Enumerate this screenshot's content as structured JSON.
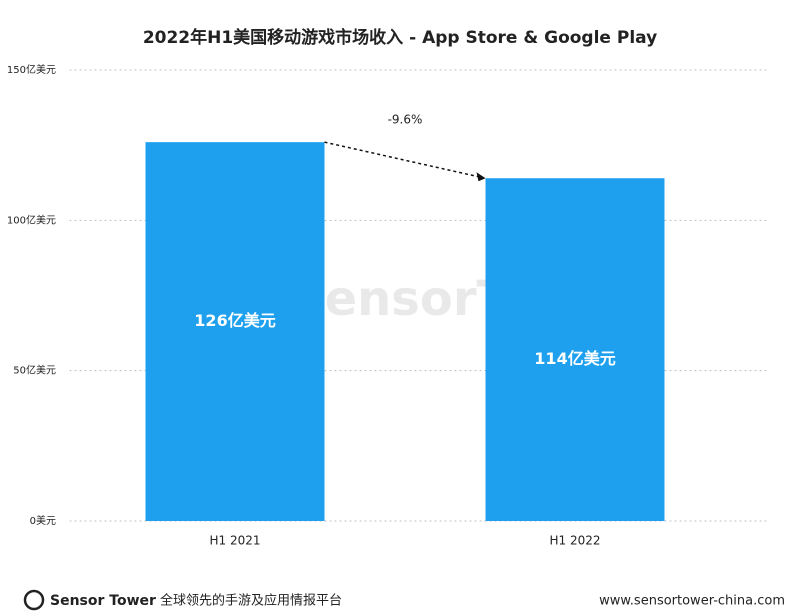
{
  "chart_data": {
    "type": "bar",
    "title": "2022年H1美国移动游戏市场收入 - App Store & Google Play",
    "categories": [
      "H1 2021",
      "H1 2022"
    ],
    "values": [
      126,
      114
    ],
    "value_labels": [
      "126亿美元",
      "114亿美元"
    ],
    "color": "#1fa0ee",
    "ylim": [
      0,
      150
    ],
    "yticks": [
      {
        "value": 0,
        "label": "0美元"
      },
      {
        "value": 50,
        "label": "50亿美元"
      },
      {
        "value": 100,
        "label": "100亿美元"
      },
      {
        "value": 150,
        "label": "150亿美元"
      }
    ],
    "grid": true,
    "annotation": "-9.6%"
  },
  "watermark": "SensorTower",
  "footer": {
    "brand": "Sensor Tower",
    "tagline": "全球领先的手游及应用情报平台",
    "url": "www.sensortower-china.com"
  }
}
